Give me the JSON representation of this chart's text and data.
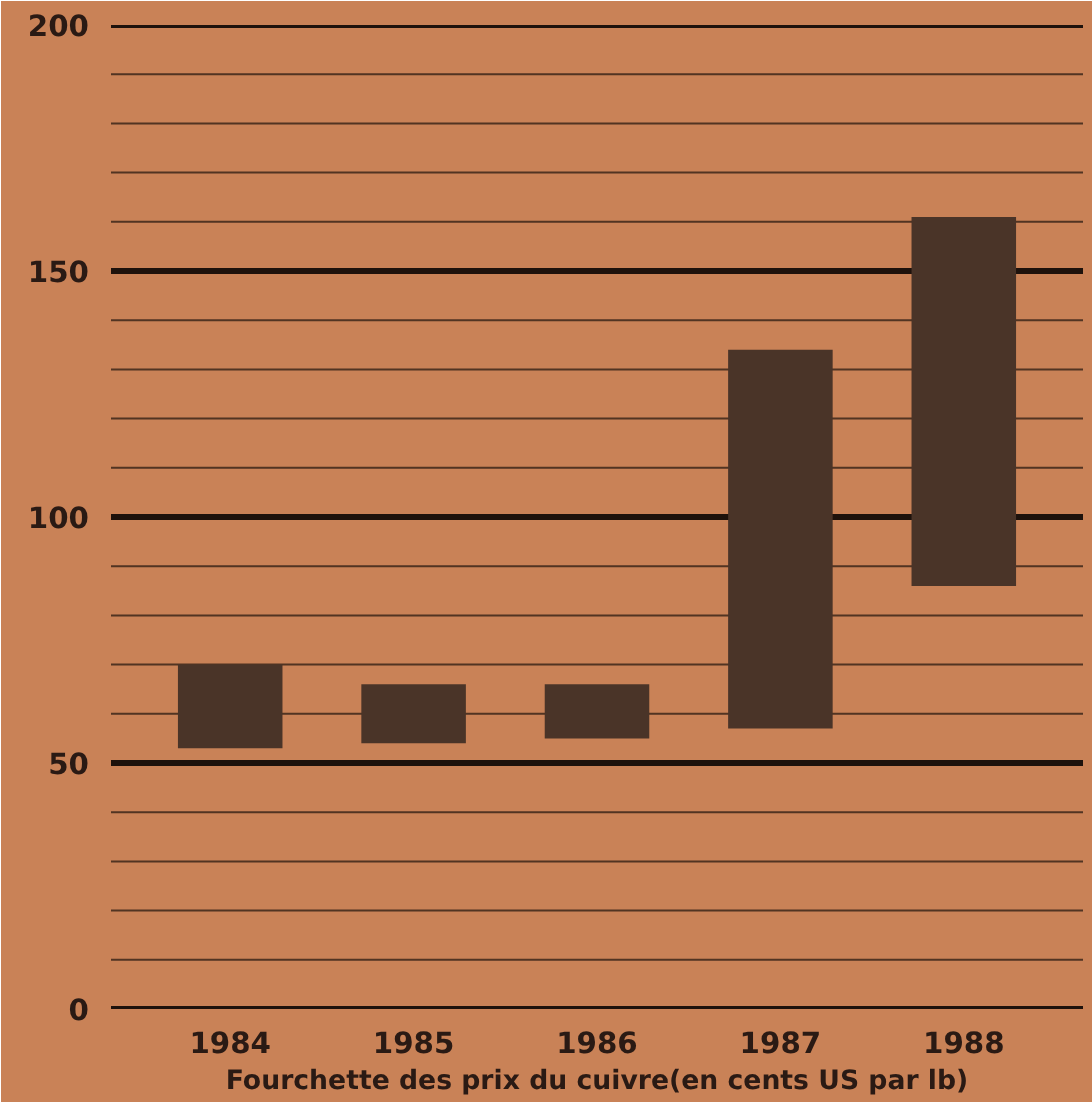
{
  "chart_data": {
    "type": "bar",
    "xlabel": "Fourchette des prix du cuivre(en cents US par lb)",
    "categories": [
      "1984",
      "1985",
      "1986",
      "1987",
      "1988"
    ],
    "base": [
      53,
      54,
      55,
      57,
      86
    ],
    "values": [
      17,
      12,
      11,
      77,
      75
    ],
    "color": "#4a3428",
    "ylim": [
      0,
      200
    ],
    "yticks": [
      0,
      {
        "value": 10,
        "label": null
      },
      {
        "value": 20,
        "label": null
      },
      {
        "value": 30,
        "label": null
      },
      {
        "value": 40,
        "label": null
      },
      50,
      {
        "value": 60,
        "label": null
      },
      {
        "value": 70,
        "label": null
      },
      {
        "value": 80,
        "label": null
      },
      {
        "value": 90,
        "label": null
      },
      100,
      {
        "value": 110,
        "label": null
      },
      {
        "value": 120,
        "label": null
      },
      {
        "value": 130,
        "label": null
      },
      {
        "value": 140,
        "label": null
      },
      150,
      {
        "value": 160,
        "label": null
      },
      {
        "value": 170,
        "label": null
      },
      {
        "value": 180,
        "label": null
      },
      {
        "value": 190,
        "label": null
      },
      200
    ],
    "grid": "y"
  }
}
